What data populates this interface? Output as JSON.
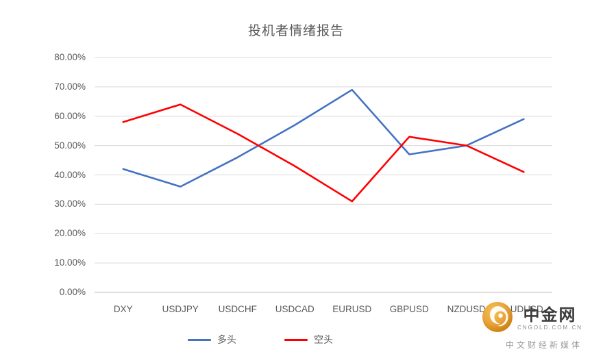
{
  "chart_data": {
    "type": "line",
    "title": "投机者情绪报告",
    "categories": [
      "DXY",
      "USDJPY",
      "USDCHF",
      "USDCAD",
      "EURUSD",
      "GBPUSD",
      "NZDUSD",
      "AUDUSD"
    ],
    "series": [
      {
        "name": "多头",
        "color": "#4472c4",
        "values": [
          42,
          36,
          46,
          57,
          69,
          47,
          50,
          59
        ]
      },
      {
        "name": "空头",
        "color": "#ff0000",
        "values": [
          58,
          64,
          54,
          43,
          31,
          53,
          50,
          41
        ]
      }
    ],
    "ylim": [
      0,
      80
    ],
    "ytick_step": 10,
    "y_tick_labels": [
      "0.00%",
      "10.00%",
      "20.00%",
      "30.00%",
      "40.00%",
      "50.00%",
      "60.00%",
      "70.00%",
      "80.00%"
    ],
    "grid": true,
    "gridline_color": "#d9d9d9",
    "axis_line_color": "#bfbfbf",
    "legend_position": "bottom"
  },
  "watermark": {
    "brand": "中金网",
    "domain": "CNGOLD.COM.CN",
    "tagline": "中文财经新媒体",
    "logo_gold": "#e8a33d",
    "logo_gold_dark": "#c97a08"
  }
}
